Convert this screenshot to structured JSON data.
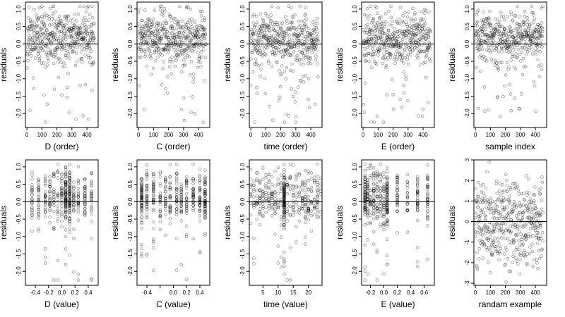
{
  "chart_data": [
    {
      "type": "scatter",
      "xlabel": "D (order)",
      "ylabel": "residuals",
      "xlim": [
        -10,
        475
      ],
      "ylim": [
        -2.4,
        1.2
      ],
      "xticks": [
        0,
        100,
        200,
        300,
        400
      ],
      "xtick_labels": [
        "0",
        "100",
        "200",
        "300",
        "400"
      ],
      "yticks": [
        -2.0,
        -1.5,
        -1.0,
        -0.5,
        0.0,
        0.5,
        1.0
      ],
      "ytick_labels": [
        "-2.0",
        "-1.5",
        "-1.0",
        "-0.5",
        "0.0",
        "0.5",
        "1.0"
      ],
      "reference_line": 0,
      "n_points": 450,
      "generator": {
        "mode": "index",
        "seed": 11
      }
    },
    {
      "type": "scatter",
      "xlabel": "C (order)",
      "ylabel": "residuals",
      "xlim": [
        -10,
        475
      ],
      "ylim": [
        -2.4,
        1.2
      ],
      "xticks": [
        0,
        100,
        200,
        300,
        400
      ],
      "xtick_labels": [
        "0",
        "100",
        "200",
        "300",
        "400"
      ],
      "yticks": [
        -2.0,
        -1.5,
        -1.0,
        -0.5,
        0.0,
        0.5,
        1.0
      ],
      "ytick_labels": [
        "-2.0",
        "-1.5",
        "-1.0",
        "-0.5",
        "0.0",
        "0.5",
        "1.0"
      ],
      "reference_line": 0,
      "n_points": 450,
      "generator": {
        "mode": "index",
        "seed": 23
      }
    },
    {
      "type": "scatter",
      "xlabel": "time (order)",
      "ylabel": "residuals",
      "xlim": [
        -10,
        475
      ],
      "ylim": [
        -2.4,
        1.2
      ],
      "xticks": [
        0,
        100,
        200,
        300,
        400
      ],
      "xtick_labels": [
        "0",
        "100",
        "200",
        "300",
        "400"
      ],
      "yticks": [
        -2.0,
        -1.5,
        -1.0,
        -0.5,
        0.0,
        0.5,
        1.0
      ],
      "ytick_labels": [
        "-2.0",
        "-1.5",
        "-1.0",
        "-0.5",
        "0.0",
        "0.5",
        "1.0"
      ],
      "reference_line": 0,
      "n_points": 450,
      "generator": {
        "mode": "index",
        "seed": 37
      }
    },
    {
      "type": "scatter",
      "xlabel": "E (order)",
      "ylabel": "residuals",
      "xlim": [
        -10,
        475
      ],
      "ylim": [
        -2.4,
        1.2
      ],
      "xticks": [
        0,
        100,
        200,
        300,
        400
      ],
      "xtick_labels": [
        "0",
        "100",
        "200",
        "300",
        "400"
      ],
      "yticks": [
        -2.0,
        -1.5,
        -1.0,
        -0.5,
        0.0,
        0.5,
        1.0
      ],
      "ytick_labels": [
        "-2.0",
        "-1.5",
        "-1.0",
        "-0.5",
        "0.0",
        "0.5",
        "1.0"
      ],
      "reference_line": 0,
      "n_points": 450,
      "generator": {
        "mode": "index",
        "seed": 41
      }
    },
    {
      "type": "scatter",
      "xlabel": "sample index",
      "ylabel": "residuals",
      "xlim": [
        -10,
        475
      ],
      "ylim": [
        -2.4,
        1.2
      ],
      "xticks": [
        0,
        100,
        200,
        300,
        400
      ],
      "xtick_labels": [
        "0",
        "100",
        "200",
        "300",
        "400"
      ],
      "yticks": [
        -2.0,
        -1.5,
        -1.0,
        -0.5,
        0.0,
        0.5,
        1.0
      ],
      "ytick_labels": [
        "-2.0",
        "-1.5",
        "-1.0",
        "-0.5",
        "0.0",
        "0.5",
        "1.0"
      ],
      "reference_line": 0,
      "n_points": 450,
      "generator": {
        "mode": "index",
        "seed": 53
      }
    },
    {
      "type": "scatter",
      "xlabel": "D (value)",
      "ylabel": "residuals",
      "xlim": [
        -0.55,
        0.55
      ],
      "ylim": [
        -2.4,
        1.2
      ],
      "xticks": [
        -0.4,
        -0.2,
        0.0,
        0.2,
        0.4
      ],
      "xtick_labels": [
        "-0.4",
        "-0.2",
        "0.0",
        "0.2",
        "0.4"
      ],
      "yticks": [
        -2.0,
        -1.5,
        -1.0,
        -0.5,
        0.0,
        0.5,
        1.0
      ],
      "ytick_labels": [
        "-2.0",
        "-1.5",
        "-1.0",
        "-0.5",
        "0.0",
        "0.5",
        "1.0"
      ],
      "reference_line": 0,
      "n_points": 450,
      "generator": {
        "mode": "discrete",
        "seed": 61,
        "values": [
          -0.45,
          -0.35,
          -0.25,
          -0.18,
          -0.12,
          -0.06,
          0.0,
          0.06,
          0.12,
          0.18,
          0.25,
          0.35,
          0.45
        ],
        "heavy": [
          0.06,
          0.12
        ]
      }
    },
    {
      "type": "scatter",
      "xlabel": "C (value)",
      "ylabel": "residuals",
      "xlim": [
        -0.55,
        0.55
      ],
      "ylim": [
        -2.4,
        1.2
      ],
      "xticks": [
        -0.4,
        -0.2,
        0.0,
        0.2,
        0.4
      ],
      "xtick_labels": [
        "-0.4",
        "",
        "0.0",
        "0.2",
        "0.4"
      ],
      "yticks": [
        -2.0,
        -1.5,
        -1.0,
        -0.5,
        0.0,
        0.5,
        1.0
      ],
      "ytick_labels": [
        "-2.0",
        "-1.5",
        "-1.0",
        "-0.5",
        "0.0",
        "0.5",
        "1.0"
      ],
      "reference_line": 0,
      "n_points": 450,
      "generator": {
        "mode": "discrete",
        "seed": 71,
        "values": [
          -0.48,
          -0.4,
          -0.3,
          -0.2,
          -0.12,
          -0.05,
          0.05,
          0.12,
          0.2,
          0.3,
          0.4,
          0.48
        ],
        "heavy": [
          -0.48,
          0.48
        ]
      }
    },
    {
      "type": "scatter",
      "xlabel": "time (value)",
      "ylabel": "residuals",
      "xlim": [
        0.5,
        24.5
      ],
      "ylim": [
        -2.4,
        1.2
      ],
      "xticks": [
        5,
        10,
        15,
        20
      ],
      "xtick_labels": [
        "5",
        "10",
        "15",
        "20"
      ],
      "yticks": [
        -2.0,
        -1.5,
        -1.0,
        -0.5,
        0.0,
        0.5,
        1.0
      ],
      "ytick_labels": [
        "-2.0",
        "-1.5",
        "-1.0",
        "-0.5",
        "0.0",
        "0.5",
        "1.0"
      ],
      "reference_line": 0,
      "n_points": 450,
      "generator": {
        "mode": "discrete",
        "seed": 83,
        "values": [
          1,
          2,
          3,
          4,
          5,
          6,
          7,
          8,
          9,
          10,
          11,
          12,
          13,
          14,
          15,
          16,
          17,
          18,
          19,
          20,
          21,
          22,
          23,
          24
        ],
        "heavy": [
          12
        ]
      }
    },
    {
      "type": "scatter",
      "xlabel": "E (value)",
      "ylabel": "residuals",
      "xlim": [
        -0.33,
        0.75
      ],
      "ylim": [
        -2.4,
        1.2
      ],
      "xticks": [
        -0.2,
        0.0,
        0.2,
        0.4,
        0.6
      ],
      "xtick_labels": [
        "-0.2",
        "0.0",
        "0.2",
        "0.4",
        "0.6"
      ],
      "yticks": [
        -2.0,
        -1.5,
        -1.0,
        -0.5,
        0.0,
        0.5,
        1.0
      ],
      "ytick_labels": [
        "-2.0",
        "-1.5",
        "-1.0",
        "-0.5",
        "0.0",
        "0.5",
        "1.0"
      ],
      "reference_line": 0,
      "n_points": 450,
      "generator": {
        "mode": "discrete",
        "seed": 97,
        "values": [
          -0.28,
          -0.24,
          -0.2,
          -0.15,
          -0.1,
          -0.05,
          0.0,
          0.05,
          0.2,
          0.35,
          0.5,
          0.65
        ],
        "heavy": [
          -0.28,
          0.05
        ]
      }
    },
    {
      "type": "scatter",
      "xlabel": "randam example",
      "ylabel": "residuals",
      "xlim": [
        -10,
        475
      ],
      "ylim": [
        -3.1,
        3.0
      ],
      "xticks": [
        0,
        100,
        200,
        300,
        400
      ],
      "xtick_labels": [
        "0",
        "100",
        "200",
        "300",
        "400"
      ],
      "yticks": [
        -3,
        -2,
        -1,
        0,
        1,
        2,
        3
      ],
      "ytick_labels": [
        "-3",
        "-2",
        "-1",
        "0",
        "1",
        "2",
        "3"
      ],
      "reference_line": 0,
      "n_points": 450,
      "generator": {
        "mode": "random",
        "seed": 101
      }
    }
  ]
}
